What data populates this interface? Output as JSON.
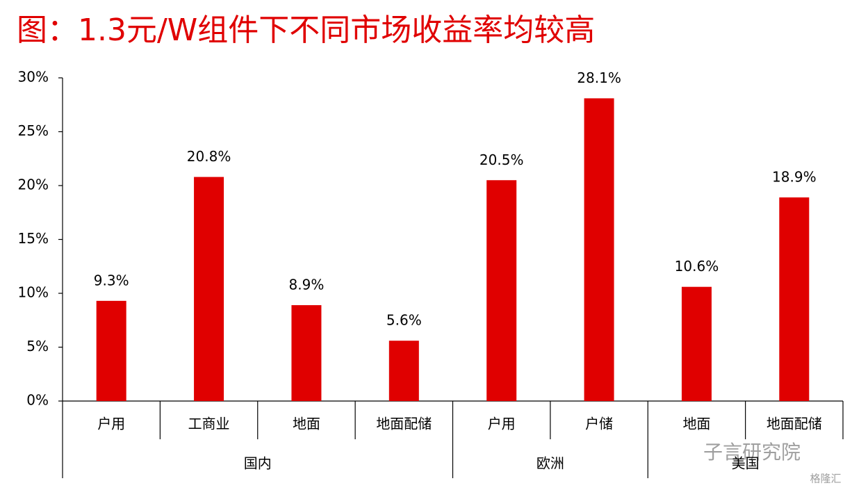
{
  "chart_data": {
    "type": "bar",
    "title": "图：1.3元/W组件下不同市场收益率均较高",
    "categories": [
      "户用",
      "工商业",
      "地面",
      "地面配储",
      "户用",
      "户储",
      "地面",
      "地面配储"
    ],
    "groups": [
      "国内",
      "国内",
      "国内",
      "国内",
      "欧洲",
      "欧洲",
      "美国",
      "美国"
    ],
    "values": [
      9.3,
      20.8,
      8.9,
      5.6,
      20.5,
      28.1,
      10.6,
      18.9
    ],
    "value_labels": [
      "9.3%",
      "20.8%",
      "8.9%",
      "5.6%",
      "20.5%",
      "28.1%",
      "10.6%",
      "18.9%"
    ],
    "color": "#e00000",
    "ylim": [
      0,
      30
    ],
    "yticks": [
      {
        "value": 0,
        "label": "0%"
      },
      {
        "value": 5,
        "label": "5%"
      },
      {
        "value": 10,
        "label": "10%"
      },
      {
        "value": 15,
        "label": "15%"
      },
      {
        "value": 20,
        "label": "20%"
      },
      {
        "value": 25,
        "label": "25%"
      },
      {
        "value": 30,
        "label": "30%"
      }
    ],
    "grid": false,
    "annotations": [
      "子言研究院",
      "格隆汇"
    ]
  }
}
